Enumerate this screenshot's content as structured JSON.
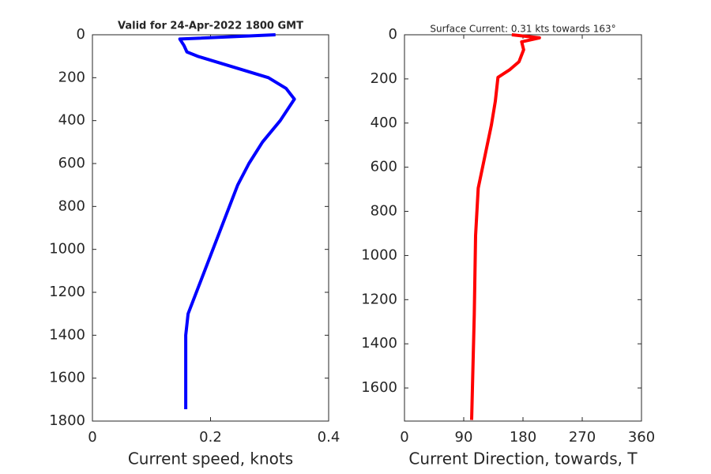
{
  "chart_data": [
    {
      "type": "line",
      "title": "Valid for 24-Apr-2022 1800 GMT",
      "x_label": "Current speed, knots",
      "x": [
        0.31,
        0.148,
        0.155,
        0.16,
        0.178,
        0.298,
        0.328,
        0.342,
        0.318,
        0.288,
        0.265,
        0.246,
        0.162,
        0.158,
        0.158
      ],
      "values": [
        0,
        20,
        50,
        80,
        100,
        200,
        250,
        300,
        400,
        500,
        600,
        700,
        1300,
        1400,
        1745
      ],
      "color": "#0000ff",
      "xlim": [
        0,
        0.4
      ],
      "xticks": [
        0,
        0.2,
        0.4
      ],
      "ylim": [
        0,
        1800
      ],
      "yticks": [
        0,
        200,
        400,
        600,
        800,
        1000,
        1200,
        1400,
        1600,
        1800
      ],
      "y_reversed": true,
      "grid": false
    },
    {
      "type": "line",
      "title": "Surface Current: 0.31 kts towards 163°",
      "x_label": "Current Direction, towards, T",
      "x": [
        163,
        205,
        178,
        181,
        174,
        160,
        142,
        138,
        132,
        122,
        112,
        108,
        106,
        102
      ],
      "values": [
        0,
        14,
        32,
        68,
        122,
        158,
        193,
        301,
        409,
        552,
        695,
        910,
        1269,
        1745
      ],
      "color": "#ff0000",
      "xlim": [
        0,
        360
      ],
      "xticks": [
        0,
        90,
        180,
        270,
        360
      ],
      "ylim": [
        0,
        1750
      ],
      "yticks": [
        0,
        200,
        400,
        600,
        800,
        1000,
        1200,
        1400,
        1600
      ],
      "y_reversed": true,
      "grid": false
    }
  ]
}
